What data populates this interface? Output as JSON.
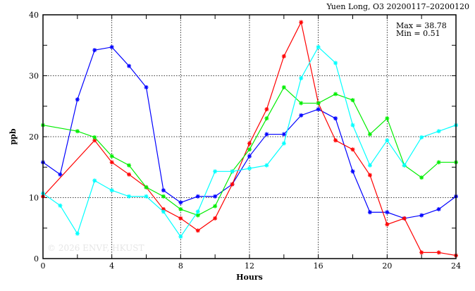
{
  "chart_data": {
    "type": "line",
    "title": "Yuen Long, O3 20200117–20200120",
    "xlabel": "Hours",
    "ylabel": "ppb",
    "xlim": [
      0,
      24
    ],
    "ylim": [
      0,
      40
    ],
    "xticks": [
      0,
      4,
      8,
      12,
      16,
      20,
      24
    ],
    "yticks": [
      0,
      10,
      20,
      30,
      40
    ],
    "grid": true,
    "annotations": {
      "max": "Max = 38.78",
      "min": "Min =  0.51"
    },
    "watermark": "© 2026  ENVF, HKUST",
    "x": [
      0,
      1,
      2,
      3,
      4,
      5,
      6,
      7,
      8,
      9,
      10,
      11,
      12,
      13,
      14,
      15,
      16,
      17,
      18,
      19,
      20,
      21,
      22,
      23,
      24
    ],
    "series": [
      {
        "name": "blue",
        "color": "#0000ff",
        "values": [
          15.8,
          13.8,
          26.1,
          34.2,
          34.7,
          31.6,
          28.1,
          11.2,
          9.2,
          10.2,
          10.2,
          12.2,
          16.8,
          20.4,
          20.4,
          23.5,
          24.5,
          23.0,
          14.3,
          7.6,
          7.6,
          6.6,
          7.1,
          8.1,
          10.2
        ]
      },
      {
        "name": "red",
        "color": "#ff0000",
        "values": [
          10.2,
          null,
          null,
          19.4,
          15.8,
          13.8,
          11.7,
          8.1,
          6.6,
          4.6,
          6.6,
          12.2,
          18.9,
          24.5,
          33.2,
          38.78,
          25.5,
          19.4,
          17.9,
          13.7,
          5.6,
          6.6,
          1.0,
          1.0,
          0.51
        ]
      },
      {
        "name": "green",
        "color": "#00ee00",
        "values": [
          21.9,
          null,
          20.9,
          19.9,
          16.8,
          15.3,
          11.7,
          10.2,
          8.1,
          7.1,
          8.6,
          14.3,
          17.9,
          23.0,
          28.1,
          25.5,
          25.5,
          27.0,
          26.0,
          20.4,
          23.0,
          15.3,
          13.3,
          15.8,
          15.8
        ]
      },
      {
        "name": "cyan",
        "color": "#00ffff",
        "values": [
          10.7,
          8.7,
          4.1,
          12.8,
          11.2,
          10.2,
          10.2,
          7.7,
          3.6,
          7.7,
          14.3,
          14.3,
          14.8,
          15.3,
          18.9,
          29.6,
          34.7,
          32.1,
          21.9,
          15.3,
          19.4,
          15.3,
          19.9,
          20.9,
          21.9
        ]
      }
    ]
  }
}
